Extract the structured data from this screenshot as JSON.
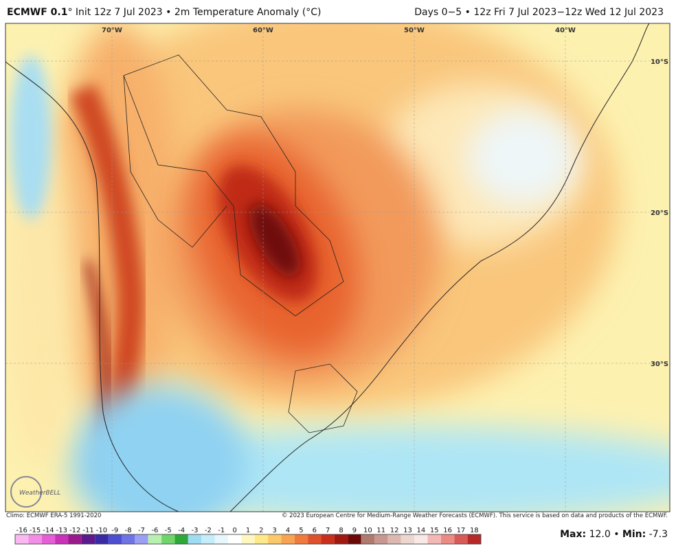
{
  "header": {
    "model": "ECMWF 0.1",
    "description": "° Init 12z 7 Jul 2023 • 2m Temperature Anomaly (°C)",
    "valid": "Days 0−5 • 12z Fri 7 Jul 2023−12z Wed 12 Jul 2023"
  },
  "map": {
    "longitude_labels": [
      "70°W",
      "60°W",
      "50°W",
      "40°W"
    ],
    "latitude_labels": [
      "10°S",
      "20°S",
      "30°S"
    ],
    "logo": "WeatherBELL"
  },
  "footer": {
    "climo": "Climo: ECMWF ERA-5 1991-2020",
    "copyright": "© 2023 European Centre for Medium-Range Weather Forecasts (ECMWF). This service is based on data and products of the ECMWF."
  },
  "colorbar": {
    "labels": [
      -16,
      -15,
      -14,
      -13,
      -12,
      -11,
      -10,
      -9,
      -8,
      -7,
      -6,
      -5,
      -4,
      -3,
      -2,
      -1,
      0,
      1,
      2,
      3,
      4,
      5,
      6,
      7,
      8,
      9,
      10,
      11,
      12,
      13,
      14,
      15,
      16,
      17,
      18
    ],
    "colors": [
      "#f9b8ef",
      "#f38ee6",
      "#e65ed6",
      "#c931b9",
      "#9a1a8e",
      "#5c1a8c",
      "#3b2aa6",
      "#4b4fd0",
      "#6f73e6",
      "#9b9ff2",
      "#b8f0b0",
      "#6fd46a",
      "#2fa83a",
      "#9fdcf4",
      "#c4ecf9",
      "#e8f7fc",
      "#ffffff",
      "#fff7c0",
      "#fde98a",
      "#fbc86a",
      "#f7a352",
      "#f07a3c",
      "#e0502a",
      "#c8301c",
      "#a01812",
      "#6c0808",
      "#b07a70",
      "#c89890",
      "#dcb8b0",
      "#ecd6d0",
      "#f8e8e6",
      "#f4b8b4",
      "#ec8a86",
      "#d85a58",
      "#b82828"
    ]
  },
  "stats": {
    "max_label": "Max:",
    "max": "12.0",
    "separator": "•",
    "min_label": "Min:",
    "min": "-7.3"
  }
}
